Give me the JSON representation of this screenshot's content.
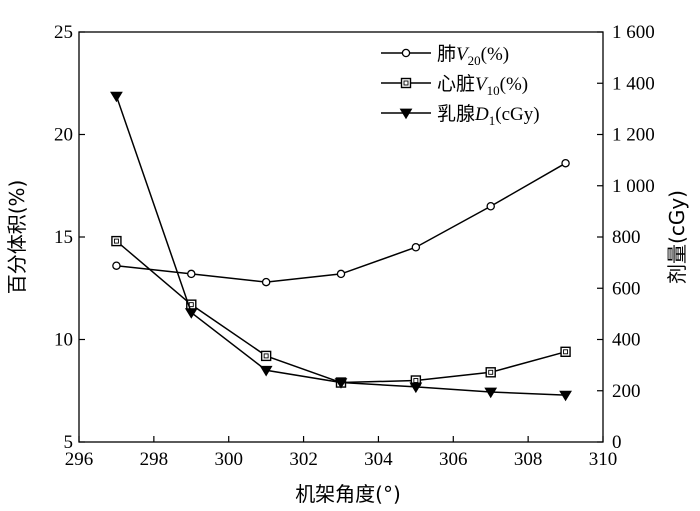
{
  "chart_data": {
    "type": "line",
    "xlabel": "机架角度(°)",
    "ylabel_left": "百分体积(%)",
    "ylabel_right": "剂量(cGy)",
    "x": [
      297,
      299,
      301,
      303,
      305,
      307,
      309
    ],
    "xlim": [
      296,
      310
    ],
    "xticks": [
      "296",
      "298",
      "300",
      "302",
      "304",
      "306",
      "308",
      "310"
    ],
    "ylim_left": [
      5,
      25
    ],
    "yticks_left": [
      "5",
      "10",
      "15",
      "20",
      "25"
    ],
    "ylim_right": [
      0,
      1600
    ],
    "yticks_right": [
      "0",
      "200",
      "400",
      "600",
      "800",
      "1 000",
      "1 200",
      "1 400",
      "1 600"
    ],
    "legend_position": "top-right",
    "series": [
      {
        "name": "肺V20(%)",
        "legend": {
          "prefix": "肺",
          "var": "V",
          "sub": "20",
          "suffix": "(%)"
        },
        "axis": "left",
        "marker": "circle",
        "values": [
          13.6,
          13.2,
          12.8,
          13.2,
          14.5,
          16.5,
          18.6
        ]
      },
      {
        "name": "心脏V10(%)",
        "legend": {
          "prefix": "心脏",
          "var": "V",
          "sub": "10",
          "suffix": "(%)"
        },
        "axis": "left",
        "marker": "square",
        "values": [
          14.8,
          11.7,
          9.2,
          7.9,
          8.0,
          8.4,
          9.4
        ]
      },
      {
        "name": "乳腺D1(cGy)",
        "legend": {
          "prefix": "乳腺",
          "var": "D",
          "sub": "1",
          "suffix": "(cGy)"
        },
        "axis": "right",
        "marker": "triangle-down",
        "values": [
          1350,
          505,
          280,
          232,
          215,
          195,
          183
        ]
      }
    ]
  }
}
